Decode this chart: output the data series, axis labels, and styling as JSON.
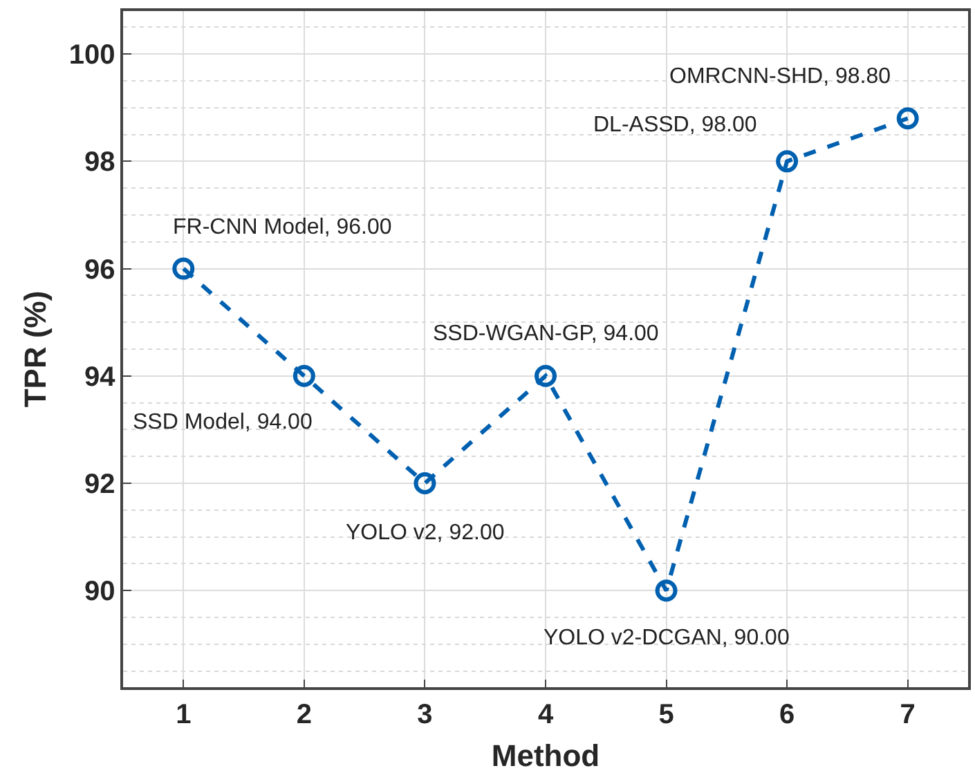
{
  "chart_data": {
    "type": "line",
    "xlabel": "Method",
    "ylabel": "TPR (%)",
    "x": [
      1,
      2,
      3,
      4,
      5,
      6,
      7
    ],
    "series": [
      {
        "color": "#0060b0",
        "values": [
          96,
          94,
          92,
          94,
          90,
          98,
          98.8
        ]
      }
    ],
    "xlim": [
      0.5,
      7.5
    ],
    "xticks": [
      1,
      2,
      3,
      4,
      5,
      6,
      7
    ],
    "ylim": [
      88.2,
      100.8
    ],
    "yticks": [
      90,
      92,
      94,
      96,
      98,
      100
    ],
    "grid": true,
    "marker": "circle",
    "line_style": "dashed",
    "annotations": [
      {
        "text": "FR-CNN Model, 96.00",
        "x": 1,
        "y": 96
      },
      {
        "text": "SSD Model, 94.00",
        "x": 2,
        "y": 94
      },
      {
        "text": "YOLO v2, 92.00",
        "x": 3,
        "y": 92
      },
      {
        "text": "SSD-WGAN-GP, 94.00",
        "x": 4,
        "y": 94
      },
      {
        "text": "YOLO v2-DCGAN, 90.00",
        "x": 5,
        "y": 90
      },
      {
        "text": "DL-ASSD, 98.00",
        "x": 6,
        "y": 98
      },
      {
        "text": "OMRCNN-SHD, 98.80",
        "x": 7,
        "y": 98.8
      }
    ]
  }
}
